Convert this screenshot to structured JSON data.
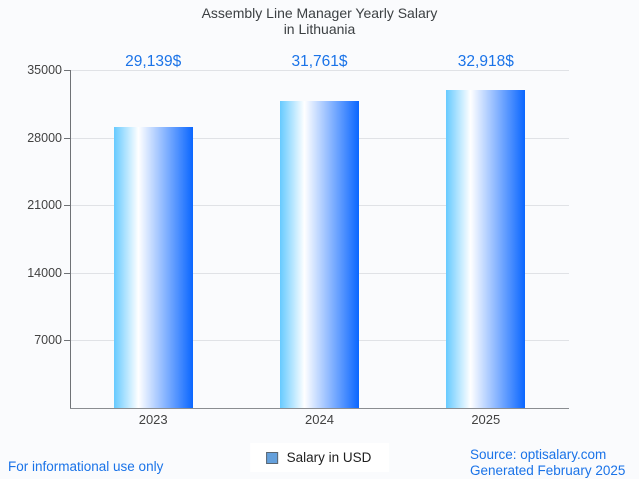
{
  "page": {
    "background": "#FAFBFD"
  },
  "title": {
    "line1": "Assembly Line Manager Yearly Salary",
    "line2": "in Lithuania"
  },
  "legend": {
    "label": "Salary in USD"
  },
  "footer": {
    "left": "For informational use only",
    "source": "Source: optisalary.com",
    "generated": "Generated February 2025"
  },
  "colors": {
    "accent_blue": "#1A73E8",
    "bar_gradient_left": "#66CAFF",
    "bar_gradient_mid": "#FFFFFF",
    "bar_gradient_right": "#0A66FF",
    "legend_marker": "#64A0DC",
    "gridline": "#E0E2E6",
    "axis": "#6F7276",
    "title_text": "#3C4043",
    "tick_text": "#424242"
  },
  "chart_data": {
    "type": "bar",
    "title": "Assembly Line Manager Yearly Salary in Lithuania",
    "categories": [
      "2023",
      "2024",
      "2025"
    ],
    "series": [
      {
        "name": "Salary in USD",
        "values": [
          29139,
          31761,
          32918
        ]
      }
    ],
    "value_labels": [
      "29,139$",
      "31,761$",
      "32,918$"
    ],
    "xlabel": "",
    "ylabel": "",
    "ylim": [
      0,
      35000
    ],
    "yticks": [
      7000,
      14000,
      21000,
      28000,
      35000
    ],
    "grid": true,
    "legend_position": "bottom"
  }
}
